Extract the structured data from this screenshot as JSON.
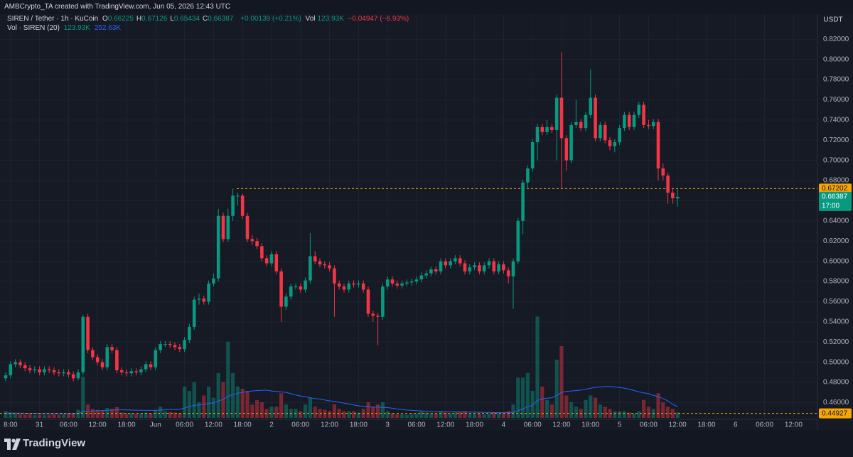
{
  "header": {
    "watermark": "AMBCrypto_TA created with TradingView.com, Jun 05, 2026 12:43 UTC"
  },
  "legend": {
    "symbol": "SIREN / Tether · 1h · KuCoin",
    "fields": [
      {
        "key": "O",
        "value": "0.66225"
      },
      {
        "key": "H",
        "value": "0.67126"
      },
      {
        "key": "L",
        "value": "0.65434"
      },
      {
        "key": "C",
        "value": "0.66387"
      }
    ],
    "change": "+0.00139 (+0.21%)",
    "vol_key": "Vol",
    "vol": "123.93K",
    "vol_change": "−0.04947 (−6.93%)"
  },
  "volume_legend": {
    "name": "Vol · SIREN (20)",
    "vol": "123.93K",
    "ma": "252.63K"
  },
  "footer": {
    "brand": "TradingView"
  },
  "chart_data": {
    "type": "candlestick",
    "axis_unit": "USDT",
    "ylim": [
      0.4434,
      0.8448
    ],
    "yticks": [
      {
        "value": 0.46,
        "label": "0.46000"
      },
      {
        "value": 0.48,
        "label": "0.48000"
      },
      {
        "value": 0.5,
        "label": "0.50000"
      },
      {
        "value": 0.52,
        "label": "0.52000"
      },
      {
        "value": 0.54,
        "label": "0.54000"
      },
      {
        "value": 0.56,
        "label": "0.56000"
      },
      {
        "value": 0.58,
        "label": "0.58000"
      },
      {
        "value": 0.6,
        "label": "0.60000"
      },
      {
        "value": 0.62,
        "label": "0.62000"
      },
      {
        "value": 0.64,
        "label": "0.64000"
      },
      {
        "value": 0.66,
        "label": "0.66000"
      },
      {
        "value": 0.68,
        "label": "0.68000"
      },
      {
        "value": 0.7,
        "label": "0.70000"
      },
      {
        "value": 0.72,
        "label": "0.72000"
      },
      {
        "value": 0.74,
        "label": "0.74000"
      },
      {
        "value": 0.76,
        "label": "0.76000"
      },
      {
        "value": 0.78,
        "label": "0.78000"
      },
      {
        "value": 0.8,
        "label": "0.80000"
      },
      {
        "value": 0.82,
        "label": "0.82000"
      }
    ],
    "xticks": [
      {
        "value": 1,
        "label": "8:00"
      },
      {
        "value": 7,
        "label": "31"
      },
      {
        "value": 13,
        "label": "06:00"
      },
      {
        "value": 19,
        "label": "12:00"
      },
      {
        "value": 25,
        "label": "18:00"
      },
      {
        "value": 31,
        "label": "Jun"
      },
      {
        "value": 37,
        "label": "06:00"
      },
      {
        "value": 43,
        "label": "12:00"
      },
      {
        "value": 49,
        "label": "18:00"
      },
      {
        "value": 55,
        "label": "2"
      },
      {
        "value": 61,
        "label": "06:00"
      },
      {
        "value": 67,
        "label": "12:00"
      },
      {
        "value": 73,
        "label": "18:00"
      },
      {
        "value": 79,
        "label": "3"
      },
      {
        "value": 85,
        "label": "06:00"
      },
      {
        "value": 91,
        "label": "12:00"
      },
      {
        "value": 97,
        "label": "18:00"
      },
      {
        "value": 103,
        "label": "4"
      },
      {
        "value": 109,
        "label": "06:00"
      },
      {
        "value": 115,
        "label": "12:00"
      },
      {
        "value": 121,
        "label": "18:00"
      },
      {
        "value": 127,
        "label": "5"
      },
      {
        "value": 133,
        "label": "06:00"
      },
      {
        "value": 139,
        "label": "12:00"
      },
      {
        "value": 145,
        "label": "18:00"
      },
      {
        "value": 151,
        "label": "6"
      },
      {
        "value": 157,
        "label": "06:00"
      },
      {
        "value": 163,
        "label": "12:00"
      }
    ],
    "grid": true,
    "up_color": "#089981",
    "down_color": "#f23645",
    "ma_color": "#2962ff",
    "line_color": "#f7a600",
    "price_lines": [
      {
        "value": 0.67202,
        "label": "0.67202"
      },
      {
        "value": 0.44927,
        "label": "0.44927"
      }
    ],
    "last_label": "0.66387",
    "countdown": "17:00",
    "volume_ylim": [
      0,
      9000
    ],
    "series": [
      {
        "name": "SIREN / Tether",
        "open": [
          0.484,
          0.487,
          0.498,
          0.5,
          0.497,
          0.494,
          0.492,
          0.493,
          0.49,
          0.493,
          0.492,
          0.49,
          0.489,
          0.49,
          0.488,
          0.484,
          0.49,
          0.545,
          0.512,
          0.505,
          0.5,
          0.495,
          0.515,
          0.512,
          0.492,
          0.49,
          0.489,
          0.491,
          0.49,
          0.493,
          0.498,
          0.495,
          0.512,
          0.518,
          0.518,
          0.517,
          0.515,
          0.513,
          0.522,
          0.535,
          0.562,
          0.563,
          0.56,
          0.578,
          0.583,
          0.645,
          0.622,
          0.645,
          0.665,
          0.665,
          0.645,
          0.622,
          0.62,
          0.615,
          0.603,
          0.598,
          0.607,
          0.59,
          0.555,
          0.565,
          0.575,
          0.575,
          0.572,
          0.581,
          0.605,
          0.6,
          0.597,
          0.596,
          0.593,
          0.578,
          0.575,
          0.572,
          0.578,
          0.577,
          0.578,
          0.572,
          0.548,
          0.546,
          0.545,
          0.575,
          0.582,
          0.578,
          0.576,
          0.578,
          0.579,
          0.58,
          0.582,
          0.586,
          0.588,
          0.592,
          0.59,
          0.6,
          0.596,
          0.6,
          0.603,
          0.598,
          0.59,
          0.594,
          0.596,
          0.59,
          0.596,
          0.6,
          0.59,
          0.597,
          0.591,
          0.585,
          0.6,
          0.64,
          0.678,
          0.692,
          0.718,
          0.733,
          0.728,
          0.733,
          0.73,
          0.762,
          0.722,
          0.7,
          0.735,
          0.738,
          0.732,
          0.745,
          0.762,
          0.722,
          0.735,
          0.72,
          0.714,
          0.718,
          0.732,
          0.745,
          0.733,
          0.745,
          0.755,
          0.735,
          0.734,
          0.738,
          0.692,
          0.685,
          0.668,
          0.66225
        ],
        "high": [
          0.49,
          0.501,
          0.503,
          0.503,
          0.5,
          0.497,
          0.496,
          0.496,
          0.496,
          0.496,
          0.495,
          0.493,
          0.493,
          0.493,
          0.491,
          0.493,
          0.547,
          0.548,
          0.515,
          0.508,
          0.503,
          0.518,
          0.518,
          0.515,
          0.495,
          0.493,
          0.494,
          0.494,
          0.496,
          0.501,
          0.501,
          0.515,
          0.521,
          0.521,
          0.521,
          0.52,
          0.518,
          0.525,
          0.538,
          0.565,
          0.568,
          0.566,
          0.581,
          0.588,
          0.652,
          0.648,
          0.652,
          0.67202,
          0.668,
          0.667,
          0.648,
          0.626,
          0.623,
          0.618,
          0.606,
          0.61,
          0.61,
          0.593,
          0.568,
          0.578,
          0.578,
          0.578,
          0.584,
          0.628,
          0.61,
          0.603,
          0.6,
          0.599,
          0.596,
          0.581,
          0.578,
          0.581,
          0.581,
          0.581,
          0.581,
          0.575,
          0.551,
          0.549,
          0.578,
          0.585,
          0.585,
          0.581,
          0.581,
          0.582,
          0.583,
          0.585,
          0.589,
          0.591,
          0.595,
          0.595,
          0.603,
          0.603,
          0.603,
          0.606,
          0.606,
          0.601,
          0.597,
          0.599,
          0.599,
          0.599,
          0.603,
          0.603,
          0.6,
          0.6,
          0.594,
          0.603,
          0.643,
          0.681,
          0.695,
          0.721,
          0.736,
          0.736,
          0.74,
          0.736,
          0.765,
          0.807,
          0.725,
          0.738,
          0.76,
          0.741,
          0.748,
          0.79,
          0.765,
          0.738,
          0.738,
          0.723,
          0.721,
          0.735,
          0.748,
          0.748,
          0.748,
          0.758,
          0.758,
          0.74,
          0.741,
          0.741,
          0.697,
          0.688,
          0.672,
          0.67126
        ],
        "low": [
          0.481,
          0.484,
          0.495,
          0.494,
          0.491,
          0.489,
          0.489,
          0.487,
          0.487,
          0.489,
          0.487,
          0.486,
          0.486,
          0.485,
          0.481,
          0.482,
          0.487,
          0.509,
          0.502,
          0.497,
          0.492,
          0.492,
          0.509,
          0.489,
          0.487,
          0.486,
          0.486,
          0.487,
          0.487,
          0.49,
          0.492,
          0.492,
          0.509,
          0.515,
          0.514,
          0.512,
          0.51,
          0.51,
          0.519,
          0.532,
          0.557,
          0.557,
          0.557,
          0.575,
          0.58,
          0.619,
          0.619,
          0.64,
          0.655,
          0.642,
          0.619,
          0.616,
          0.612,
          0.6,
          0.595,
          0.595,
          0.587,
          0.54,
          0.552,
          0.562,
          0.572,
          0.569,
          0.569,
          0.578,
          0.597,
          0.594,
          0.593,
          0.59,
          0.545,
          0.572,
          0.569,
          0.569,
          0.574,
          0.574,
          0.569,
          0.545,
          0.54,
          0.517,
          0.542,
          0.572,
          0.575,
          0.573,
          0.573,
          0.575,
          0.576,
          0.577,
          0.579,
          0.583,
          0.585,
          0.587,
          0.587,
          0.593,
          0.593,
          0.597,
          0.595,
          0.587,
          0.587,
          0.591,
          0.587,
          0.587,
          0.593,
          0.587,
          0.587,
          0.588,
          0.578,
          0.553,
          0.597,
          0.627,
          0.672,
          0.689,
          0.7,
          0.725,
          0.725,
          0.727,
          0.7,
          0.672,
          0.69,
          0.697,
          0.732,
          0.729,
          0.729,
          0.742,
          0.719,
          0.719,
          0.717,
          0.71,
          0.708,
          0.715,
          0.729,
          0.73,
          0.73,
          0.742,
          0.732,
          0.731,
          0.731,
          0.68,
          0.68,
          0.657,
          0.657,
          0.65434
        ],
        "close": [
          0.487,
          0.498,
          0.5,
          0.497,
          0.494,
          0.492,
          0.493,
          0.49,
          0.493,
          0.492,
          0.49,
          0.489,
          0.49,
          0.488,
          0.484,
          0.49,
          0.545,
          0.512,
          0.505,
          0.5,
          0.495,
          0.515,
          0.512,
          0.492,
          0.49,
          0.489,
          0.491,
          0.49,
          0.493,
          0.498,
          0.495,
          0.512,
          0.518,
          0.518,
          0.517,
          0.515,
          0.513,
          0.522,
          0.535,
          0.562,
          0.563,
          0.56,
          0.578,
          0.583,
          0.645,
          0.622,
          0.645,
          0.665,
          0.665,
          0.645,
          0.622,
          0.62,
          0.615,
          0.603,
          0.598,
          0.607,
          0.59,
          0.555,
          0.565,
          0.575,
          0.575,
          0.572,
          0.581,
          0.605,
          0.6,
          0.597,
          0.596,
          0.593,
          0.578,
          0.575,
          0.572,
          0.578,
          0.577,
          0.578,
          0.572,
          0.548,
          0.546,
          0.545,
          0.575,
          0.582,
          0.578,
          0.576,
          0.578,
          0.579,
          0.58,
          0.582,
          0.586,
          0.588,
          0.592,
          0.59,
          0.6,
          0.596,
          0.6,
          0.603,
          0.598,
          0.59,
          0.594,
          0.596,
          0.59,
          0.596,
          0.6,
          0.59,
          0.597,
          0.591,
          0.585,
          0.6,
          0.64,
          0.678,
          0.692,
          0.718,
          0.733,
          0.728,
          0.733,
          0.73,
          0.762,
          0.722,
          0.7,
          0.735,
          0.738,
          0.732,
          0.745,
          0.762,
          0.722,
          0.735,
          0.72,
          0.714,
          0.718,
          0.732,
          0.745,
          0.733,
          0.745,
          0.755,
          0.735,
          0.734,
          0.738,
          0.692,
          0.685,
          0.668,
          0.66248,
          0.66387
        ],
        "volume": [
          150,
          120,
          90,
          80,
          70,
          80,
          60,
          70,
          60,
          60,
          70,
          60,
          70,
          80,
          100,
          180,
          920,
          300,
          200,
          180,
          160,
          220,
          200,
          240,
          120,
          100,
          110,
          90,
          90,
          120,
          100,
          180,
          250,
          150,
          130,
          120,
          110,
          700,
          600,
          800,
          350,
          500,
          700,
          450,
          1000,
          800,
          1700,
          1000,
          700,
          650,
          600,
          300,
          400,
          350,
          200,
          250,
          250,
          550,
          300,
          200,
          200,
          150,
          300,
          450,
          250,
          200,
          180,
          150,
          300,
          200,
          150,
          150,
          150,
          120,
          200,
          350,
          250,
          300,
          350,
          150,
          100,
          80,
          80,
          70,
          90,
          100,
          150,
          120,
          100,
          100,
          150,
          120,
          100,
          120,
          130,
          150,
          100,
          90,
          100,
          80,
          90,
          120,
          100,
          100,
          150,
          300,
          900,
          900,
          1000,
          600,
          2260,
          700,
          400,
          300,
          1300,
          1600,
          500,
          350,
          250,
          200,
          400,
          500,
          450,
          300,
          250,
          200,
          150,
          150,
          150,
          120,
          100,
          150,
          400,
          250,
          200,
          550,
          350,
          250,
          200,
          123.93
        ],
        "volume_ma": [
          110,
          108,
          106,
          104,
          102,
          100,
          98,
          96,
          94,
          92,
          90,
          90,
          90,
          90,
          92,
          98,
          140,
          150,
          155,
          160,
          165,
          170,
          175,
          180,
          180,
          178,
          175,
          172,
          170,
          168,
          168,
          170,
          175,
          180,
          185,
          185,
          190,
          220,
          250,
          280,
          290,
          300,
          320,
          335,
          380,
          410,
          480,
          520,
          550,
          570,
          590,
          600,
          610,
          615,
          620,
          600,
          590,
          580,
          570,
          540,
          510,
          490,
          470,
          450,
          430,
          420,
          400,
          380,
          370,
          350,
          330,
          310,
          290,
          270,
          260,
          250,
          240,
          240,
          235,
          230,
          215,
          200,
          190,
          175,
          170,
          160,
          155,
          150,
          145,
          140,
          140,
          138,
          136,
          135,
          133,
          132,
          130,
          128,
          126,
          124,
          122,
          120,
          118,
          118,
          118,
          125,
          160,
          200,
          250,
          280,
          390,
          420,
          440,
          450,
          500,
          570,
          590,
          600,
          610,
          620,
          640,
          660,
          680,
          690,
          700,
          700,
          690,
          680,
          660,
          640,
          610,
          580,
          560,
          540,
          500,
          480,
          430,
          380,
          300,
          252.63
        ]
      }
    ]
  }
}
